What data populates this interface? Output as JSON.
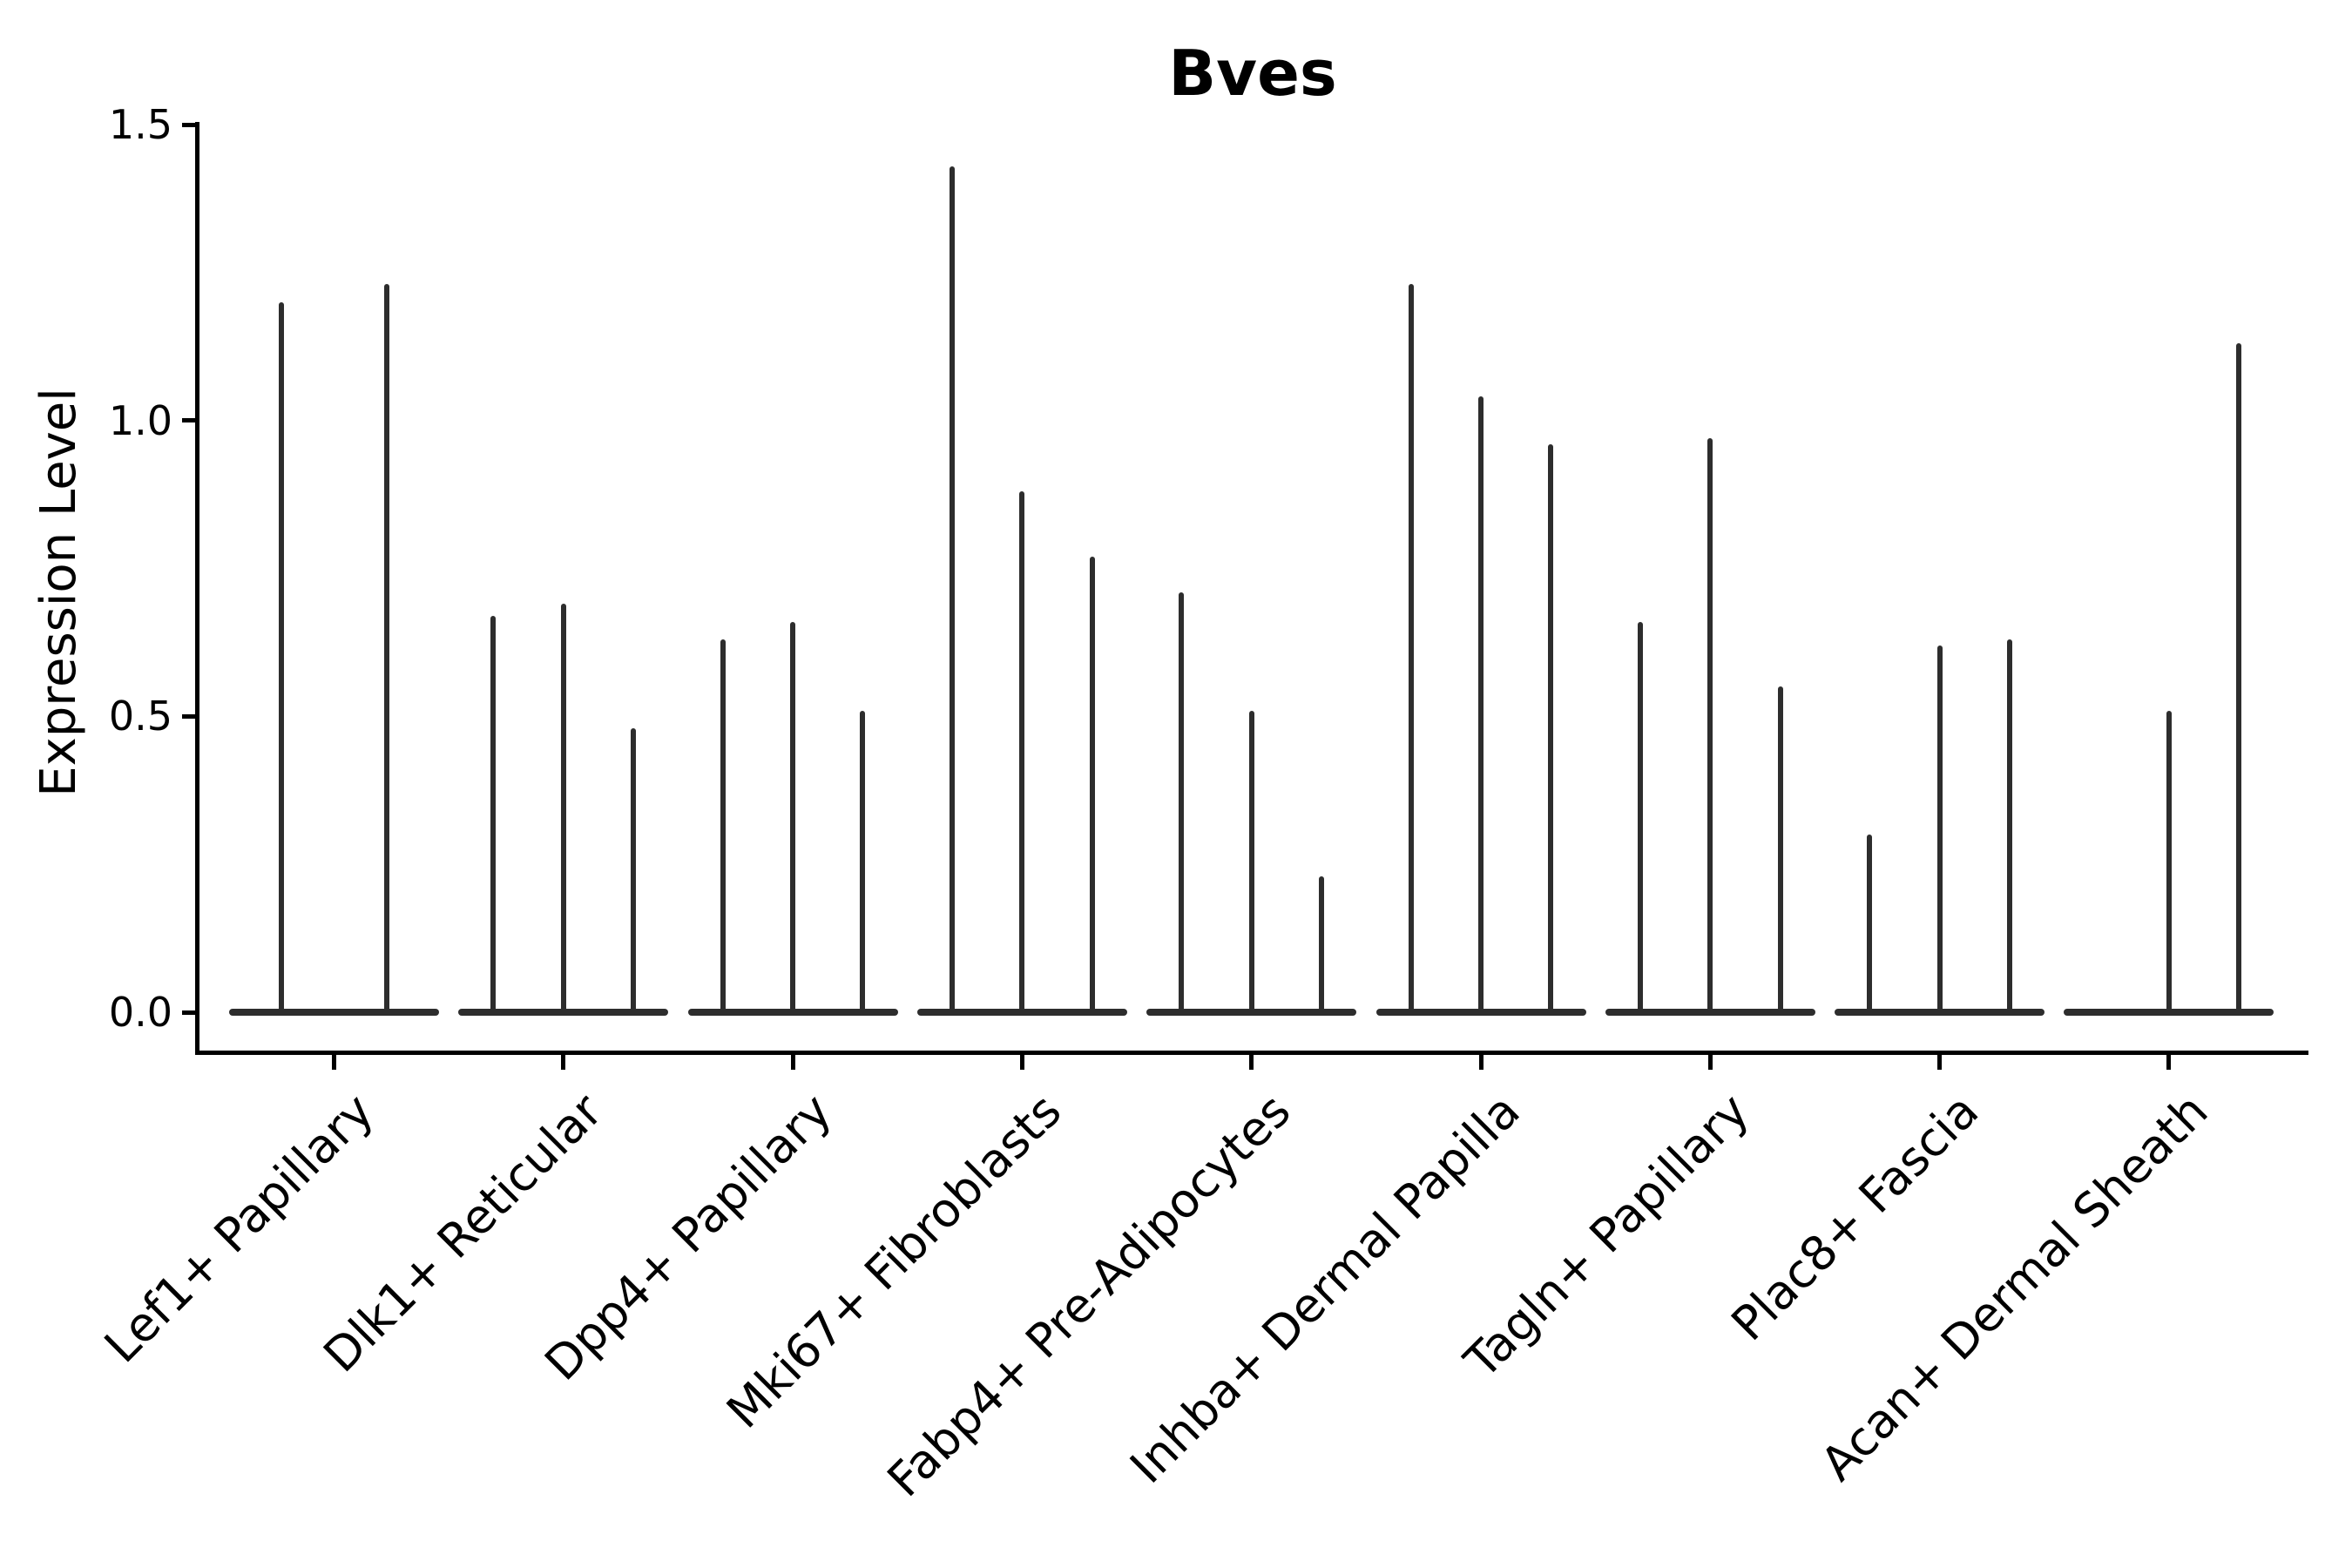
{
  "page": {
    "background": "#ffffff"
  },
  "chart_data": {
    "type": "violin",
    "title": "Bves",
    "xlabel": "",
    "ylabel": "Expression Level",
    "ylim": [
      0,
      1.5
    ],
    "yticks": [
      0.0,
      0.5,
      1.0,
      1.5
    ],
    "ytick_labels": [
      "0.0",
      "0.5",
      "1.0",
      "1.5"
    ],
    "grid": false,
    "legend_position": "none",
    "violin_color": "#2d2d2d",
    "axis_color": "#000000",
    "categories": [
      "Lef1+ Papillary",
      "Dlk1+ Reticular",
      "Dpp4+ Papillary",
      "Mki67+ Fibroblasts",
      "Fabp4+ Pre-Adipocytes",
      "Inhba+ Dermal Papilla",
      "Tagln+ Papillary",
      "Plac8+ Fascia",
      "Acan+ Dermal Sheath"
    ],
    "series": [
      {
        "category": "Lef1+ Papillary",
        "violin_max_expression": [
          1.2,
          1.23
        ]
      },
      {
        "category": "Dlk1+ Reticular",
        "violin_max_expression": [
          0.67,
          0.69,
          0.48
        ]
      },
      {
        "category": "Dpp4+ Papillary",
        "violin_max_expression": [
          0.63,
          0.66,
          0.51
        ]
      },
      {
        "category": "Mki67+ Fibroblasts",
        "violin_max_expression": [
          1.43,
          0.88,
          0.77
        ]
      },
      {
        "category": "Fabp4+ Pre-Adipocytes",
        "violin_max_expression": [
          0.71,
          0.51,
          0.23
        ]
      },
      {
        "category": "Inhba+ Dermal Papilla",
        "violin_max_expression": [
          1.23,
          1.04,
          0.96
        ]
      },
      {
        "category": "Tagln+ Papillary",
        "violin_max_expression": [
          0.66,
          0.97,
          0.55
        ]
      },
      {
        "category": "Plac8+ Fascia",
        "violin_max_expression": [
          0.3,
          0.62,
          0.63
        ]
      },
      {
        "category": "Acan+ Dermal Sheath",
        "violin_max_expression": [
          0.0,
          0.51,
          1.13
        ]
      }
    ],
    "style_note": "Each category shows 2-3 extremely narrow per-sample violins: a flat wide base at expression 0 with a thin vertical spike up to the maximum expression value; a spike of 0 means the violin is completely flat."
  }
}
